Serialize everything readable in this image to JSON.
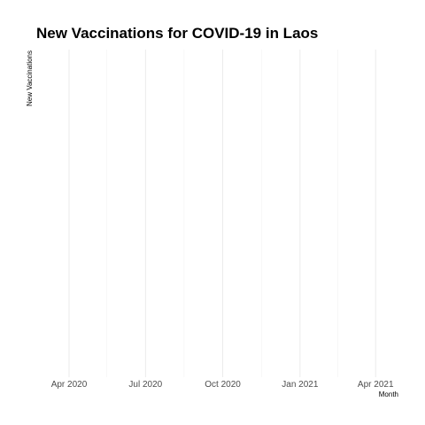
{
  "chart_data": {
    "type": "line",
    "title": "New Vaccinations for COVID-19 in Laos",
    "xlabel": "Month",
    "ylabel": "New Vaccinations",
    "x_type": "date",
    "xlim": [
      "2020-02-22",
      "2021-04-25"
    ],
    "x_ticks": [
      "2020-04-01",
      "2020-07-01",
      "2020-10-01",
      "2021-01-01",
      "2021-04-01"
    ],
    "x_tick_labels": [
      "Apr 2020",
      "Jul 2020",
      "Oct 2020",
      "Jan 2021",
      "Apr 2021"
    ],
    "x_minor_ticks": [
      "2020-05-16",
      "2020-08-16",
      "2020-11-16",
      "2021-02-15"
    ],
    "series": [
      {
        "values": []
      }
    ],
    "grid": true,
    "legend": "none"
  },
  "colors": {
    "title": "#000000",
    "tick_label": "#4d4d4d",
    "grid_major": "#ebebeb",
    "grid_minor": "#f2f2f2",
    "background": "#ffffff"
  }
}
